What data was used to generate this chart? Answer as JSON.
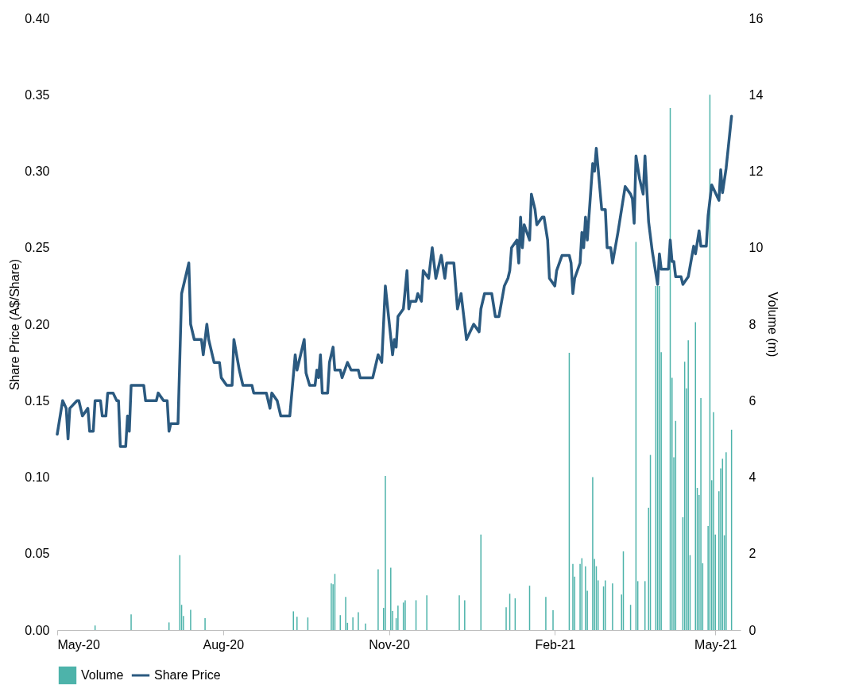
{
  "chart_data": {
    "type": "line",
    "ylabel": "Share Price (A$/Share)",
    "y2label": "Volume (m)",
    "xlim": [
      "2020-05-01",
      "2021-05-15"
    ],
    "xticks": [
      {
        "value": "2020-05-01",
        "label": "May-20"
      },
      {
        "value": "2020-08-01",
        "label": "Aug-20"
      },
      {
        "value": "2020-11-01",
        "label": "Nov-20"
      },
      {
        "value": "2021-02-01",
        "label": "Feb-21"
      },
      {
        "value": "2021-05-01",
        "label": "May-21"
      }
    ],
    "ylim": [
      0,
      0.4
    ],
    "yticks": [
      {
        "value": 0,
        "label": "0.00"
      },
      0.05,
      {
        "value": 0.1,
        "label": "0.10"
      },
      0.15,
      {
        "value": 0.2,
        "label": "0.20"
      },
      0.25,
      {
        "value": 0.3,
        "label": "0.30"
      },
      0.35,
      {
        "value": 0.4,
        "label": "0.40"
      }
    ],
    "y2lim": [
      0,
      16
    ],
    "y2ticks": [
      0,
      2,
      4,
      6,
      8,
      10,
      12,
      14,
      16
    ],
    "legend": "bottom",
    "grid": false,
    "marker": "none",
    "line_style": "solid",
    "series": [
      {
        "name": "Volume",
        "type": "bar",
        "axis": "y2",
        "color": "#4db3aa",
        "x": [
          "2020-05-22",
          "2020-06-11",
          "2020-07-02",
          "2020-07-08",
          "2020-07-09",
          "2020-07-10",
          "2020-07-14",
          "2020-07-22",
          "2020-09-09",
          "2020-09-11",
          "2020-09-17",
          "2020-09-30",
          "2020-10-01",
          "2020-10-02",
          "2020-10-05",
          "2020-10-08",
          "2020-10-09",
          "2020-10-12",
          "2020-10-15",
          "2020-10-19",
          "2020-10-26",
          "2020-10-29",
          "2020-10-30",
          "2020-11-02",
          "2020-11-03",
          "2020-11-05",
          "2020-11-06",
          "2020-11-09",
          "2020-11-10",
          "2020-11-16",
          "2020-11-22",
          "2020-12-10",
          "2020-12-13",
          "2020-12-22",
          "2021-01-05",
          "2021-01-07",
          "2021-01-10",
          "2021-01-18",
          "2021-01-27",
          "2021-01-31",
          "2021-02-09",
          "2021-02-11",
          "2021-02-12",
          "2021-02-15",
          "2021-02-16",
          "2021-02-18",
          "2021-02-19",
          "2021-02-22",
          "2021-02-23",
          "2021-02-24",
          "2021-02-25",
          "2021-02-28",
          "2021-03-01",
          "2021-03-05",
          "2021-03-10",
          "2021-03-11",
          "2021-03-15",
          "2021-03-18",
          "2021-03-19",
          "2021-03-23",
          "2021-03-25",
          "2021-03-26",
          "2021-03-29",
          "2021-03-30",
          "2021-03-31",
          "2021-04-01",
          "2021-04-06",
          "2021-04-07",
          "2021-04-08",
          "2021-04-09",
          "2021-04-13",
          "2021-04-14",
          "2021-04-15",
          "2021-04-16",
          "2021-04-17",
          "2021-04-20",
          "2021-04-21",
          "2021-04-22",
          "2021-04-23",
          "2021-04-24",
          "2021-04-27",
          "2021-04-28",
          "2021-04-29",
          "2021-04-30",
          "2021-05-01",
          "2021-05-03",
          "2021-05-04",
          "2021-05-05",
          "2021-05-06",
          "2021-05-07",
          "2021-05-10"
        ],
        "values": [
          0.12,
          0.41,
          0.2,
          1.96,
          0.66,
          0.37,
          0.53,
          0.31,
          0.49,
          0.35,
          0.33,
          1.22,
          1.2,
          1.47,
          0.39,
          0.87,
          0.19,
          0.33,
          0.47,
          0.17,
          1.59,
          0.58,
          4.03,
          1.63,
          0.5,
          0.31,
          0.64,
          0.72,
          0.78,
          0.78,
          0.91,
          0.91,
          0.78,
          2.5,
          0.6,
          0.95,
          0.83,
          1.16,
          0.87,
          0.52,
          7.25,
          1.73,
          1.4,
          1.73,
          1.88,
          1.67,
          1.03,
          4.0,
          1.86,
          1.67,
          1.3,
          1.14,
          1.3,
          1.22,
          0.93,
          2.06,
          0.66,
          10.15,
          1.28,
          1.28,
          3.2,
          4.58,
          9.0,
          9.0,
          9.0,
          7.27,
          13.65,
          6.6,
          4.52,
          5.47,
          2.95,
          7.02,
          6.32,
          7.58,
          1.96,
          8.05,
          3.72,
          3.53,
          6.07,
          1.75,
          2.72,
          14.0,
          3.92,
          5.7,
          2.5,
          3.63,
          4.23,
          4.48,
          2.48,
          4.65,
          5.24
        ]
      },
      {
        "name": "Share Price",
        "color": "#2b5a80",
        "x": [
          "2020-05-01",
          "2020-05-04",
          "2020-05-06",
          "2020-05-07",
          "2020-05-08",
          "2020-05-12",
          "2020-05-13",
          "2020-05-15",
          "2020-05-18",
          "2020-05-19",
          "2020-05-21",
          "2020-05-22",
          "2020-05-25",
          "2020-05-26",
          "2020-05-28",
          "2020-05-29",
          "2020-06-01",
          "2020-06-03",
          "2020-06-04",
          "2020-06-05",
          "2020-06-08",
          "2020-06-09",
          "2020-06-10",
          "2020-06-11",
          "2020-06-18",
          "2020-06-19",
          "2020-06-25",
          "2020-06-26",
          "2020-06-29",
          "2020-07-01",
          "2020-07-02",
          "2020-07-03",
          "2020-07-07",
          "2020-07-09",
          "2020-07-13",
          "2020-07-14",
          "2020-07-16",
          "2020-07-20",
          "2020-07-21",
          "2020-07-23",
          "2020-07-24",
          "2020-07-27",
          "2020-07-30",
          "2020-07-31",
          "2020-08-03",
          "2020-08-06",
          "2020-08-07",
          "2020-08-10",
          "2020-08-12",
          "2020-08-17",
          "2020-08-18",
          "2020-08-25",
          "2020-08-27",
          "2020-08-28",
          "2020-08-31",
          "2020-09-02",
          "2020-09-07",
          "2020-09-10",
          "2020-09-11",
          "2020-09-15",
          "2020-09-16",
          "2020-09-18",
          "2020-09-21",
          "2020-09-22",
          "2020-09-23",
          "2020-09-24",
          "2020-09-25",
          "2020-09-28",
          "2020-09-29",
          "2020-10-01",
          "2020-10-02",
          "2020-10-05",
          "2020-10-06",
          "2020-10-09",
          "2020-10-11",
          "2020-10-15",
          "2020-10-16",
          "2020-10-23",
          "2020-10-26",
          "2020-10-28",
          "2020-10-30",
          "2020-11-03",
          "2020-11-04",
          "2020-11-05",
          "2020-11-06",
          "2020-11-09",
          "2020-11-11",
          "2020-11-12",
          "2020-11-13",
          "2020-11-16",
          "2020-11-17",
          "2020-11-19",
          "2020-11-20",
          "2020-11-23",
          "2020-11-25",
          "2020-11-27",
          "2020-11-30",
          "2020-12-02",
          "2020-12-03",
          "2020-12-07",
          "2020-12-09",
          "2020-12-11",
          "2020-12-14",
          "2020-12-18",
          "2020-12-21",
          "2020-12-22",
          "2020-12-24",
          "2020-12-28",
          "2020-12-30",
          "2021-01-01",
          "2021-01-04",
          "2021-01-06",
          "2021-01-07",
          "2021-01-08",
          "2021-01-11",
          "2021-01-12",
          "2021-01-13",
          "2021-01-14",
          "2021-01-15",
          "2021-01-18",
          "2021-01-19",
          "2021-01-21",
          "2021-01-22",
          "2021-01-25",
          "2021-01-26",
          "2021-01-28",
          "2021-01-29",
          "2021-02-01",
          "2021-02-02",
          "2021-02-05",
          "2021-02-09",
          "2021-02-10",
          "2021-02-11",
          "2021-02-12",
          "2021-02-15",
          "2021-02-16",
          "2021-02-17",
          "2021-02-18",
          "2021-02-19",
          "2021-02-22",
          "2021-02-23",
          "2021-02-24",
          "2021-02-27",
          "2021-03-01",
          "2021-03-02",
          "2021-03-04",
          "2021-03-05",
          "2021-03-08",
          "2021-03-12",
          "2021-03-15",
          "2021-03-16",
          "2021-03-17",
          "2021-03-18",
          "2021-03-20",
          "2021-03-22",
          "2021-03-23",
          "2021-03-25",
          "2021-03-27",
          "2021-03-30",
          "2021-03-31",
          "2021-04-01",
          "2021-04-05",
          "2021-04-06",
          "2021-04-07",
          "2021-04-08",
          "2021-04-09",
          "2021-04-12",
          "2021-04-13",
          "2021-04-16",
          "2021-04-19",
          "2021-04-20",
          "2021-04-22",
          "2021-04-23",
          "2021-04-26",
          "2021-04-27",
          "2021-04-29",
          "2021-05-03",
          "2021-05-04",
          "2021-05-05",
          "2021-05-07",
          "2021-05-10"
        ],
        "values": [
          0.128,
          0.15,
          0.145,
          0.125,
          0.145,
          0.15,
          0.15,
          0.14,
          0.145,
          0.13,
          0.13,
          0.15,
          0.15,
          0.14,
          0.14,
          0.155,
          0.155,
          0.15,
          0.15,
          0.12,
          0.12,
          0.14,
          0.13,
          0.16,
          0.16,
          0.15,
          0.15,
          0.155,
          0.15,
          0.15,
          0.13,
          0.135,
          0.135,
          0.22,
          0.24,
          0.2,
          0.19,
          0.19,
          0.18,
          0.2,
          0.19,
          0.175,
          0.175,
          0.165,
          0.16,
          0.16,
          0.19,
          0.17,
          0.16,
          0.16,
          0.155,
          0.155,
          0.145,
          0.155,
          0.15,
          0.14,
          0.14,
          0.18,
          0.17,
          0.19,
          0.168,
          0.16,
          0.16,
          0.17,
          0.165,
          0.18,
          0.155,
          0.155,
          0.175,
          0.185,
          0.17,
          0.17,
          0.165,
          0.175,
          0.17,
          0.17,
          0.165,
          0.165,
          0.18,
          0.175,
          0.225,
          0.18,
          0.19,
          0.185,
          0.205,
          0.21,
          0.235,
          0.21,
          0.215,
          0.215,
          0.22,
          0.215,
          0.235,
          0.23,
          0.25,
          0.23,
          0.245,
          0.23,
          0.24,
          0.24,
          0.21,
          0.22,
          0.19,
          0.2,
          0.195,
          0.21,
          0.22,
          0.22,
          0.205,
          0.205,
          0.225,
          0.23,
          0.235,
          0.25,
          0.255,
          0.24,
          0.27,
          0.25,
          0.265,
          0.255,
          0.285,
          0.275,
          0.265,
          0.27,
          0.27,
          0.255,
          0.23,
          0.225,
          0.235,
          0.245,
          0.245,
          0.24,
          0.22,
          0.23,
          0.24,
          0.26,
          0.25,
          0.27,
          0.255,
          0.305,
          0.3,
          0.315,
          0.275,
          0.275,
          0.25,
          0.25,
          0.24,
          0.26,
          0.29,
          0.285,
          0.282,
          0.266,
          0.31,
          0.295,
          0.285,
          0.31,
          0.267,
          0.248,
          0.226,
          0.246,
          0.236,
          0.236,
          0.255,
          0.241,
          0.241,
          0.231,
          0.231,
          0.226,
          0.231,
          0.251,
          0.246,
          0.261,
          0.251,
          0.251,
          0.271,
          0.291,
          0.281,
          0.301,
          0.286,
          0.302,
          0.336
        ]
      }
    ]
  }
}
